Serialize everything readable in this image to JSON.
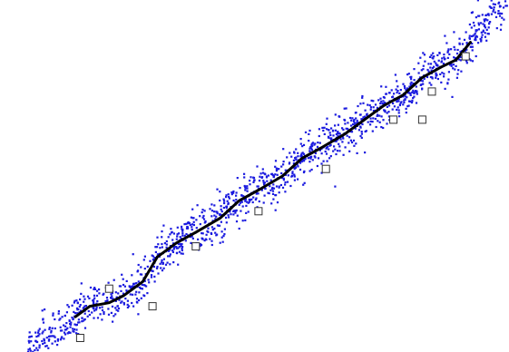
{
  "chart_data": {
    "type": "scatter",
    "title": "",
    "xlabel": "",
    "ylabel": "",
    "grid": false,
    "legend": "none",
    "xlim": [
      0,
      1
    ],
    "ylim": [
      0,
      1
    ],
    "colors": {
      "scatter": "#1a1adf",
      "curve": "#000000",
      "knot_fill": "#ffffff",
      "knot_stroke": "#333333"
    },
    "series": [
      {
        "kind": "scatter",
        "generator": "noisy-upward-trend",
        "count": 1400,
        "noise_sd": 0.03
      },
      {
        "kind": "line",
        "x": [
          0.1,
          0.13,
          0.17,
          0.2,
          0.24,
          0.27,
          0.31,
          0.35,
          0.4,
          0.44,
          0.48,
          0.53,
          0.57,
          0.61,
          0.66,
          0.7,
          0.74,
          0.78,
          0.82,
          0.86,
          0.89,
          0.92
        ],
        "y": [
          0.1,
          0.13,
          0.14,
          0.16,
          0.2,
          0.27,
          0.31,
          0.34,
          0.38,
          0.43,
          0.46,
          0.5,
          0.55,
          0.58,
          0.62,
          0.66,
          0.7,
          0.73,
          0.78,
          0.81,
          0.83,
          0.88
        ]
      },
      {
        "kind": "knots",
        "x": [
          0.11,
          0.17,
          0.26,
          0.35,
          0.48,
          0.62,
          0.76,
          0.82,
          0.84,
          0.91
        ],
        "y": [
          0.04,
          0.18,
          0.13,
          0.3,
          0.4,
          0.52,
          0.66,
          0.66,
          0.74,
          0.84
        ]
      }
    ]
  }
}
